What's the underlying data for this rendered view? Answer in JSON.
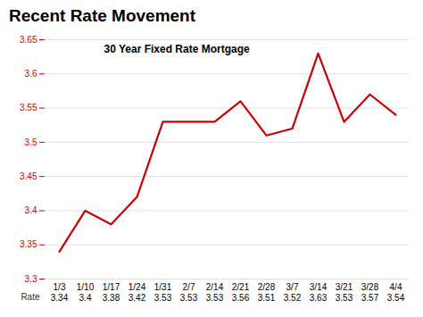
{
  "chart_data": {
    "type": "line",
    "title": "Recent Rate Movement",
    "subtitle": "30 Year Fixed Rate Mortgage",
    "categories": [
      "1/3",
      "1/10",
      "1/17",
      "1/24",
      "1/31",
      "2/7",
      "2/14",
      "2/21",
      "2/28",
      "3/7",
      "3/14",
      "3/21",
      "3/28",
      "4/4"
    ],
    "values": [
      3.34,
      3.4,
      3.38,
      3.42,
      3.53,
      3.53,
      3.53,
      3.56,
      3.51,
      3.52,
      3.63,
      3.53,
      3.57,
      3.54
    ],
    "color": "#cc0000",
    "ylim": [
      3.3,
      3.65
    ],
    "yticks": [
      3.3,
      3.35,
      3.4,
      3.45,
      3.5,
      3.55,
      3.6,
      3.65
    ],
    "grid": true,
    "data_labels": true,
    "annotations": [
      "Rate"
    ]
  }
}
